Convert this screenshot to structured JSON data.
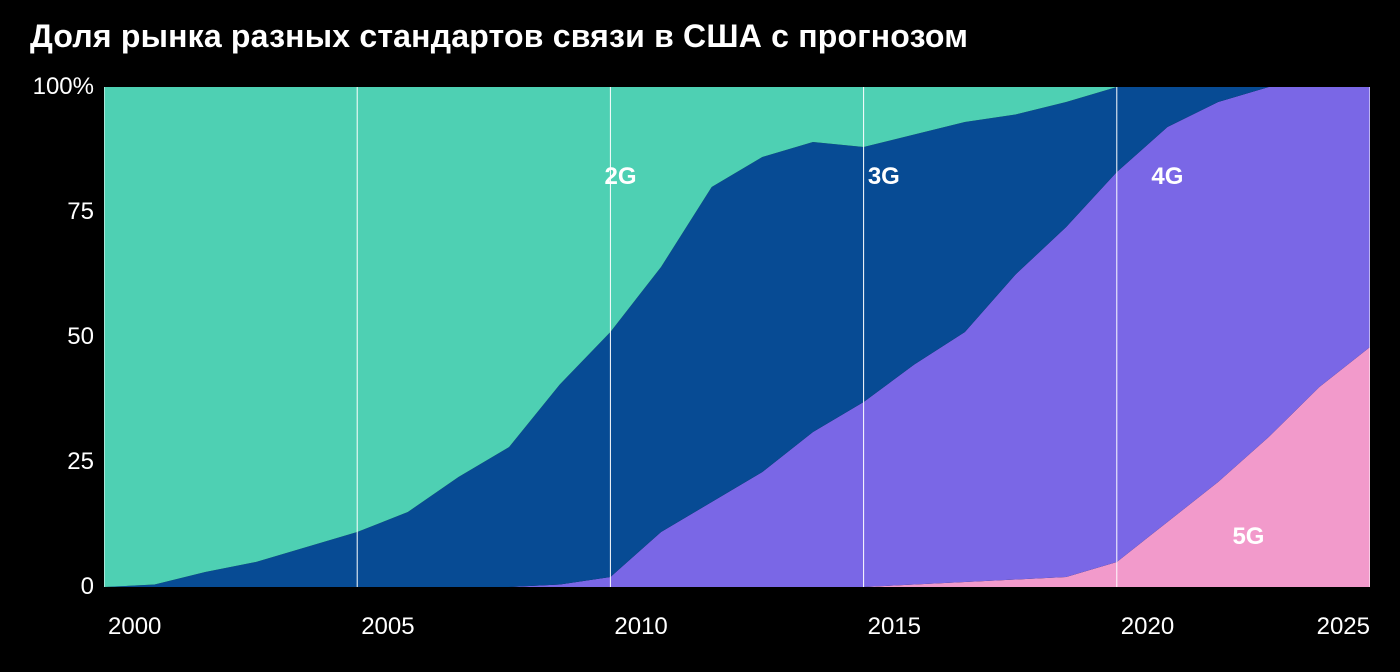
{
  "title": "Доля рынка разных стандартов связи в США с прогнозом",
  "chart": {
    "type": "area",
    "background_color": "#000000",
    "plot_background_color": "#000000",
    "title_color": "#ffffff",
    "title_fontsize": 32,
    "axis_label_color": "#ffffff",
    "axis_label_fontsize": 24,
    "grid_color": "#ffffff",
    "grid_width": 1,
    "xlim": [
      2000,
      2025
    ],
    "ylim": [
      0,
      100
    ],
    "xticks": [
      2000,
      2005,
      2010,
      2015,
      2020,
      2025
    ],
    "yticks": [
      {
        "value": 0,
        "label": "0"
      },
      {
        "value": 25,
        "label": "25"
      },
      {
        "value": 50,
        "label": "50"
      },
      {
        "value": 75,
        "label": "75"
      },
      {
        "value": 100,
        "label": "100%"
      }
    ],
    "years": [
      2000,
      2001,
      2002,
      2003,
      2004,
      2005,
      2006,
      2007,
      2008,
      2009,
      2010,
      2011,
      2012,
      2013,
      2014,
      2015,
      2016,
      2017,
      2018,
      2019,
      2020,
      2021,
      2022,
      2023,
      2024,
      2025
    ],
    "series": [
      {
        "name": "5G",
        "color": "#f29acb",
        "label_x": 2022.6,
        "label_y": 10,
        "values": [
          0,
          0,
          0,
          0,
          0,
          0,
          0,
          0,
          0,
          0,
          0,
          0,
          0,
          0,
          0,
          0,
          0.5,
          1,
          1.5,
          2,
          5,
          13,
          21,
          30,
          40,
          48
        ]
      },
      {
        "name": "4G",
        "color": "#7a67e6",
        "label_x": 2021.0,
        "label_y": 82,
        "values": [
          0,
          0,
          0,
          0,
          0,
          0,
          0,
          0,
          0,
          0.5,
          2,
          11,
          17,
          23,
          31,
          37,
          44,
          50,
          61,
          70,
          78,
          79,
          76,
          70,
          60,
          52
        ]
      },
      {
        "name": "3G",
        "color": "#074b94",
        "label_x": 2015.4,
        "label_y": 82,
        "values": [
          0,
          0.5,
          3,
          5,
          8,
          11,
          15,
          22,
          28,
          40,
          49,
          53,
          63,
          63,
          58,
          51,
          46,
          42,
          32,
          25,
          17,
          8,
          3,
          0,
          0,
          0
        ]
      },
      {
        "name": "2G",
        "color": "#4ed0b3",
        "label_x": 2010.2,
        "label_y": 82,
        "values": [
          100,
          99.5,
          97,
          95,
          92,
          89,
          85,
          78,
          72,
          59.5,
          49,
          36,
          20,
          14,
          11,
          12,
          9.5,
          7,
          5.5,
          3,
          0,
          0,
          0,
          0,
          0,
          0
        ]
      }
    ],
    "series_label_color": "#ffffff",
    "series_label_fontsize": 24,
    "series_label_fontweight": 700
  }
}
